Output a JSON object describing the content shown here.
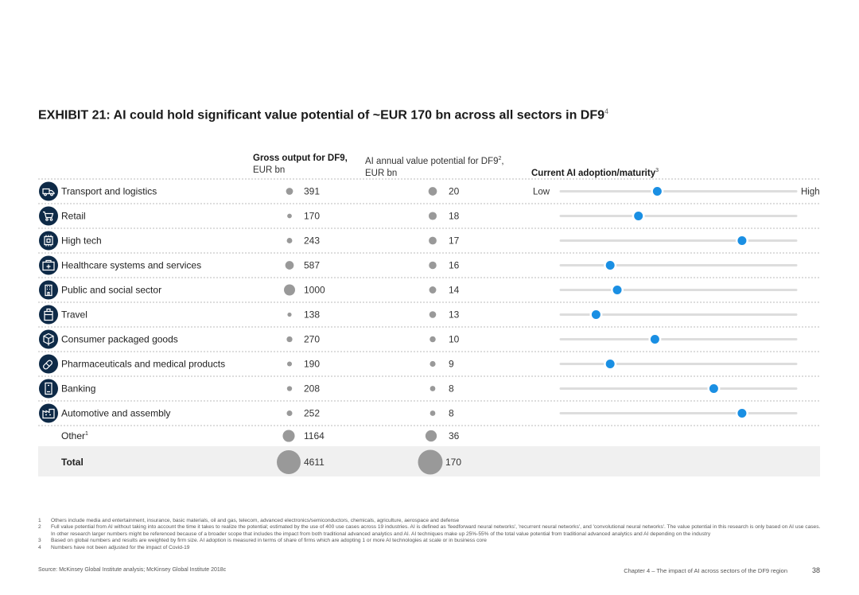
{
  "title": "EXHIBIT 21: AI could hold significant value potential of ~EUR 170 bn across all sectors in DF9",
  "title_sup": "4",
  "headers": {
    "gross_title": "Gross output for DF9,",
    "gross_unit": "EUR bn",
    "ai_title": "AI annual value potential for DF9",
    "ai_sup": "2",
    "ai_suffix": ",",
    "ai_unit": "EUR bn",
    "adoption_title": "Current AI adoption/maturity",
    "adoption_sup": "3"
  },
  "colors": {
    "bubble": "#999999",
    "slider_dot": "#1a8fe3",
    "track": "#dddddd",
    "icon_bg": "#0e2a47",
    "total_bg": "#f0f0f0",
    "dash": "#bbbbbb"
  },
  "chart_data": {
    "type": "table",
    "title": "EXHIBIT 21: AI could hold significant value potential of ~EUR 170 bn across all sectors in DF9",
    "columns": [
      "Sector",
      "Gross output for DF9, EUR bn",
      "AI annual value potential for DF9, EUR bn",
      "Current AI adoption/maturity"
    ],
    "scale_low_label": "Low",
    "scale_high_label": "High",
    "rows": [
      {
        "sector": "Transport and logistics",
        "icon": "truck-icon",
        "gross": 391,
        "ai": 20,
        "adoption": 0.41
      },
      {
        "sector": "Retail",
        "icon": "cart-icon",
        "gross": 170,
        "ai": 18,
        "adoption": 0.33
      },
      {
        "sector": "High tech",
        "icon": "chip-icon",
        "gross": 243,
        "ai": 17,
        "adoption": 0.77
      },
      {
        "sector": "Healthcare systems and services",
        "icon": "medical-kit-icon",
        "gross": 587,
        "ai": 16,
        "adoption": 0.21
      },
      {
        "sector": "Public and social sector",
        "icon": "building-icon",
        "gross": 1000,
        "ai": 14,
        "adoption": 0.24
      },
      {
        "sector": "Travel",
        "icon": "luggage-icon",
        "gross": 138,
        "ai": 13,
        "adoption": 0.15
      },
      {
        "sector": "Consumer packaged goods",
        "icon": "package-icon",
        "gross": 270,
        "ai": 10,
        "adoption": 0.4
      },
      {
        "sector": "Pharmaceuticals and medical products",
        "icon": "pill-icon",
        "gross": 190,
        "ai": 9,
        "adoption": 0.21
      },
      {
        "sector": "Banking",
        "icon": "bank-card-icon",
        "gross": 208,
        "ai": 8,
        "adoption": 0.65
      },
      {
        "sector": "Automotive and assembly",
        "icon": "car-factory-icon",
        "gross": 252,
        "ai": 8,
        "adoption": 0.77
      }
    ],
    "other": {
      "label": "Other",
      "sup": "1",
      "gross": 1164,
      "ai": 36
    },
    "total": {
      "label": "Total",
      "gross": 4611,
      "ai": 170
    }
  },
  "footnotes": [
    {
      "n": "1",
      "text": "Others include media and entertainment, insurance, basic materials, oil and gas, telecom, advanced electronics/semiconductors, chemicals, agriculture, aerospace and defense"
    },
    {
      "n": "2",
      "text": "Full value potential from AI without taking into account the time it takes to realize the potential; estimated by the use of 400 use cases across 19 industries. AI is defined as 'feedforward neural networks', 'recurrent neural networks', and 'convolutional neural networks'. The value potential in this research is only based on AI use cases. In other research larger numbers might be referenced because of a broader scope that includes the impact from both traditional advanced analytics and AI. AI techniques make up 25%-55% of the total value potential from traditional advanced analytics and AI depending on the industry"
    },
    {
      "n": "3",
      "text": "Based on global numbers and results are weighted by firm size. AI adoption is measured in terms of share of firms which are adopting 1 or more AI technologies at scale or in business core"
    },
    {
      "n": "4",
      "text": "Numbers have not been adjusted for the impact of Covid-19"
    }
  ],
  "source": "Source: McKinsey Global Institute analysis; McKinsey Global Institute 2018c",
  "chapter": "Chapter 4 – The impact of AI across sectors of the DF9 region",
  "page_number": "38"
}
